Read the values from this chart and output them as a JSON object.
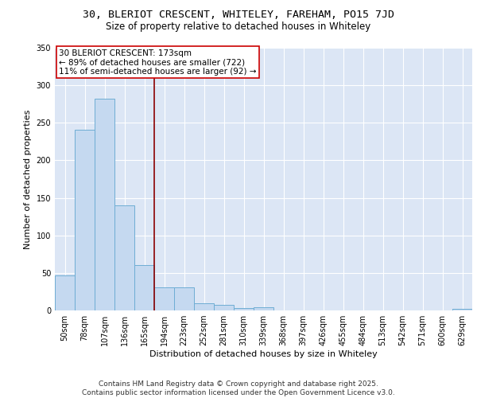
{
  "title1": "30, BLERIOT CRESCENT, WHITELEY, FAREHAM, PO15 7JD",
  "title2": "Size of property relative to detached houses in Whiteley",
  "xlabel": "Distribution of detached houses by size in Whiteley",
  "ylabel": "Number of detached properties",
  "categories": [
    "50sqm",
    "78sqm",
    "107sqm",
    "136sqm",
    "165sqm",
    "194sqm",
    "223sqm",
    "252sqm",
    "281sqm",
    "310sqm",
    "339sqm",
    "368sqm",
    "397sqm",
    "426sqm",
    "455sqm",
    "484sqm",
    "513sqm",
    "542sqm",
    "571sqm",
    "600sqm",
    "629sqm"
  ],
  "values": [
    47,
    241,
    282,
    140,
    60,
    31,
    31,
    10,
    7,
    3,
    4,
    0,
    0,
    0,
    0,
    0,
    0,
    0,
    0,
    0,
    2
  ],
  "bar_color": "#c5d9f0",
  "bar_edge_color": "#6eadd4",
  "vline_x_index": 4,
  "vline_color": "#8b0000",
  "annotation_text": "30 BLERIOT CRESCENT: 173sqm\n← 89% of detached houses are smaller (722)\n11% of semi-detached houses are larger (92) →",
  "annotation_box_color": "#cc0000",
  "ylim": [
    0,
    350
  ],
  "yticks": [
    0,
    50,
    100,
    150,
    200,
    250,
    300,
    350
  ],
  "background_color": "#dce6f5",
  "grid_color": "#ffffff",
  "footer_text": "Contains HM Land Registry data © Crown copyright and database right 2025.\nContains public sector information licensed under the Open Government Licence v3.0.",
  "title1_fontsize": 9.5,
  "title2_fontsize": 8.5,
  "annotation_fontsize": 7.5,
  "axis_label_fontsize": 8,
  "tick_fontsize": 7,
  "footer_fontsize": 6.5
}
